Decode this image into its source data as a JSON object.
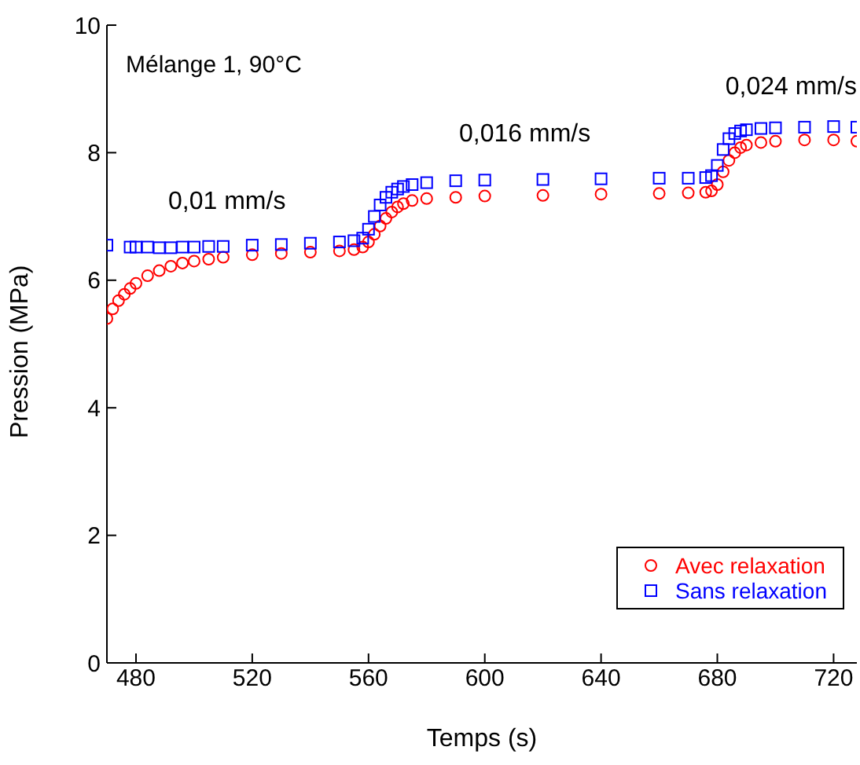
{
  "chart_data": {
    "type": "scatter",
    "title": "Mélange 1, 90°C",
    "xlabel": "Temps (s)",
    "ylabel": "Pression (MPa)",
    "x": [
      470,
      472,
      474,
      476,
      478,
      480,
      484,
      488,
      492,
      496,
      500,
      505,
      510,
      520,
      530,
      540,
      550,
      555,
      558,
      560,
      562,
      564,
      566,
      568,
      570,
      572,
      575,
      580,
      590,
      600,
      620,
      640,
      660,
      670,
      676,
      678,
      680,
      682,
      684,
      686,
      688,
      690,
      695,
      700,
      710,
      720,
      728
    ],
    "series": [
      {
        "name": "Avec relaxation",
        "color": "#ff0000",
        "marker": "circle",
        "values": [
          5.4,
          5.55,
          5.68,
          5.78,
          5.87,
          5.95,
          6.07,
          6.15,
          6.22,
          6.27,
          6.3,
          6.33,
          6.36,
          6.4,
          6.42,
          6.44,
          6.46,
          6.48,
          6.52,
          6.6,
          6.72,
          6.85,
          6.97,
          7.07,
          7.15,
          7.2,
          7.25,
          7.28,
          7.3,
          7.32,
          7.33,
          7.35,
          7.36,
          7.37,
          7.38,
          7.4,
          7.5,
          7.7,
          7.88,
          8.0,
          8.08,
          8.12,
          8.16,
          8.18,
          8.2,
          8.2,
          8.18
        ]
      },
      {
        "name": "Sans relaxation",
        "color": "#0000ff",
        "marker": "square",
        "x": [
          470,
          478,
          480,
          484,
          488,
          492,
          496,
          500,
          505,
          510,
          520,
          530,
          540,
          550,
          555,
          558,
          560,
          562,
          564,
          566,
          568,
          570,
          572,
          575,
          580,
          590,
          600,
          620,
          640,
          660,
          670,
          676,
          678,
          680,
          682,
          684,
          686,
          688,
          690,
          695,
          700,
          710,
          720,
          728
        ],
        "values": [
          6.55,
          6.52,
          6.52,
          6.52,
          6.51,
          6.51,
          6.52,
          6.52,
          6.53,
          6.53,
          6.55,
          6.56,
          6.58,
          6.6,
          6.62,
          6.66,
          6.8,
          7.0,
          7.18,
          7.3,
          7.38,
          7.43,
          7.47,
          7.5,
          7.53,
          7.56,
          7.57,
          7.58,
          7.59,
          7.6,
          7.6,
          7.61,
          7.64,
          7.8,
          8.05,
          8.22,
          8.3,
          8.34,
          8.36,
          8.38,
          8.39,
          8.4,
          8.41,
          8.4
        ]
      }
    ],
    "annotations": [
      "0,01 mm/s",
      "0,016 mm/s",
      "0,024 mm/s"
    ],
    "xlim": [
      470,
      728
    ],
    "xticks": [
      480,
      520,
      560,
      600,
      640,
      680,
      720
    ],
    "ylim": [
      0,
      10
    ],
    "yticks": [
      0,
      2,
      4,
      6,
      8,
      10
    ],
    "legend": "bottom right",
    "grid": false
  }
}
